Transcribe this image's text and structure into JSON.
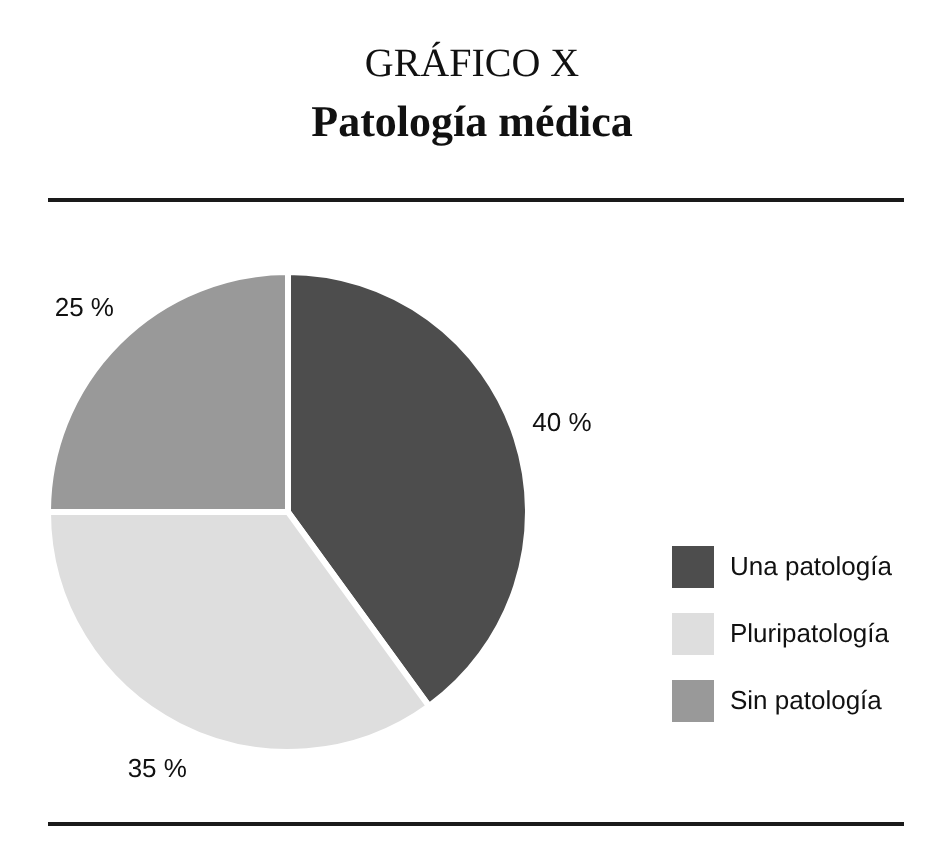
{
  "chart_data": {
    "type": "pie",
    "title": "GRÁFICO X",
    "subtitle": "Patología médica",
    "categories": [
      "Una patología",
      "Pluripatología",
      "Sin patología"
    ],
    "values": [
      40,
      35,
      25
    ],
    "colors": [
      "#4d4d4d",
      "#dedede",
      "#999999"
    ],
    "value_labels": [
      "40 %",
      "35 %",
      "25 %"
    ],
    "legend": "right"
  }
}
